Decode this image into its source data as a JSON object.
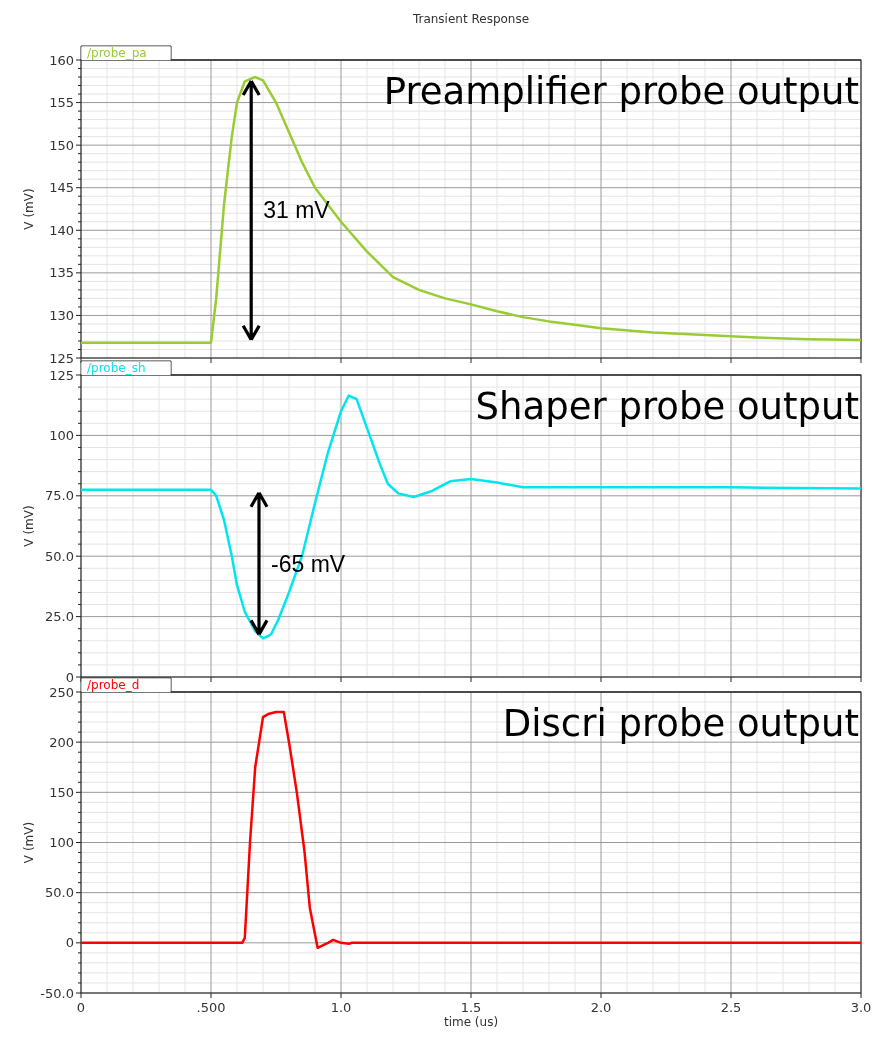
{
  "chart_data": [
    {
      "type": "line",
      "title": "Transient Response",
      "ylabel": "V (mV)",
      "xlim": [
        0,
        3.0
      ],
      "ylim": [
        125,
        160
      ],
      "yticks": [
        125,
        130,
        135,
        140,
        145,
        150,
        155,
        160
      ],
      "xticks": [
        {
          "value": 0,
          "label": null
        },
        {
          "value": 0.5,
          "label": null
        },
        {
          "value": 1,
          "label": null
        },
        {
          "value": 1.5,
          "label": null
        },
        {
          "value": 2,
          "label": null
        },
        {
          "value": 2.5,
          "label": null
        },
        {
          "value": 3,
          "label": null
        }
      ],
      "tick_labels": "y",
      "grid": true,
      "legend": "top left",
      "line_style": "solid",
      "annotations": [
        "Preamplifier probe output",
        "31 mV"
      ],
      "series": [
        {
          "name": "/probe_pa",
          "color": "#99cc33",
          "x": [
            0,
            0.5,
            0.52,
            0.55,
            0.58,
            0.6,
            0.63,
            0.67,
            0.7,
            0.75,
            0.8,
            0.85,
            0.9,
            1.0,
            1.1,
            1.2,
            1.3,
            1.4,
            1.5,
            1.6,
            1.7,
            1.8,
            1.9,
            2.0,
            2.2,
            2.4,
            2.6,
            2.8,
            3.0
          ],
          "values": [
            126.8,
            126.8,
            132,
            143,
            151,
            155,
            157.5,
            158,
            157.6,
            155,
            151.5,
            148,
            145,
            141,
            137.5,
            134.5,
            133,
            132,
            131.3,
            130.5,
            129.8,
            129.3,
            128.9,
            128.5,
            128,
            127.7,
            127.4,
            127.2,
            127.1
          ]
        }
      ]
    },
    {
      "type": "line",
      "ylabel": "V (mV)",
      "xlim": [
        0,
        3.0
      ],
      "ylim": [
        0,
        125
      ],
      "yticks": [
        0,
        {
          "value": 25,
          "label": "25.0"
        },
        {
          "value": 50,
          "label": "50.0"
        },
        {
          "value": 75,
          "label": "75.0"
        },
        100,
        125
      ],
      "xticks": [
        {
          "value": 0,
          "label": null
        },
        {
          "value": 0.5,
          "label": null
        },
        {
          "value": 1,
          "label": null
        },
        {
          "value": 1.5,
          "label": null
        },
        {
          "value": 2,
          "label": null
        },
        {
          "value": 2.5,
          "label": null
        },
        {
          "value": 3,
          "label": null
        }
      ],
      "tick_labels": "y",
      "grid": true,
      "legend": "top left",
      "line_style": "solid",
      "annotations": [
        "Shaper probe output",
        "-65 mV"
      ],
      "series": [
        {
          "name": "/probe_sh",
          "color": "#00e5ee",
          "x": [
            0,
            0.5,
            0.52,
            0.55,
            0.58,
            0.6,
            0.63,
            0.67,
            0.7,
            0.73,
            0.76,
            0.8,
            0.85,
            0.9,
            0.95,
            1.0,
            1.03,
            1.06,
            1.1,
            1.15,
            1.18,
            1.22,
            1.28,
            1.35,
            1.42,
            1.5,
            1.6,
            1.7,
            2.0,
            2.5,
            3.0
          ],
          "values": [
            77.5,
            77.5,
            75,
            65,
            50,
            38,
            27,
            19,
            16,
            17.5,
            24,
            35,
            50,
            72,
            93,
            110,
            116.5,
            115,
            103,
            88,
            80,
            76,
            74.5,
            77,
            81,
            82,
            80.5,
            78.5,
            78.5,
            78.5,
            78
          ]
        }
      ]
    },
    {
      "type": "line",
      "ylabel": "V (mV)",
      "xlabel": "time (us)",
      "xlim": [
        0,
        3.0
      ],
      "ylim": [
        -50,
        250
      ],
      "yticks": [
        {
          "value": -50,
          "label": "-50.0"
        },
        0,
        {
          "value": 50,
          "label": "50.0"
        },
        100,
        150,
        200,
        250
      ],
      "xticks": [
        0,
        {
          "value": 0.5,
          "label": ".500"
        },
        {
          "value": 1,
          "label": "1.0"
        },
        1.5,
        {
          "value": 2,
          "label": "2.0"
        },
        2.5,
        {
          "value": 3,
          "label": "3.0"
        }
      ],
      "grid": true,
      "legend": "top left",
      "line_style": "solid",
      "annotations": [
        "Discri probe output"
      ],
      "series": [
        {
          "name": "/probe_d",
          "color": "#ff0000",
          "x": [
            0,
            0.62,
            0.63,
            0.65,
            0.67,
            0.7,
            0.72,
            0.75,
            0.78,
            0.8,
            0.83,
            0.86,
            0.88,
            0.91,
            0.95,
            0.97,
            1.0,
            1.03,
            1.04,
            3.0
          ],
          "values": [
            0,
            0,
            5,
            100,
            175,
            225,
            228,
            230,
            230,
            200,
            150,
            90,
            35,
            -5,
            0,
            3,
            0,
            -1,
            0,
            0
          ]
        }
      ]
    }
  ]
}
